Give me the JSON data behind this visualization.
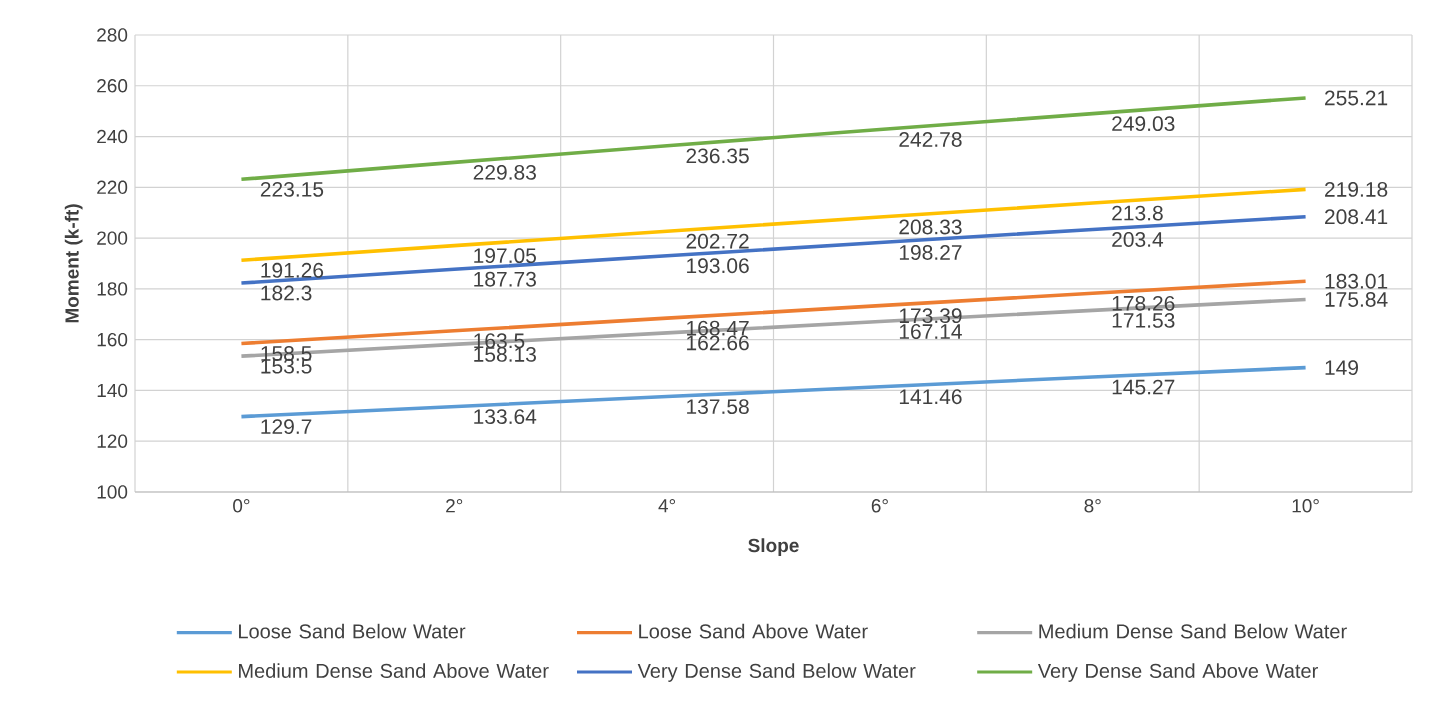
{
  "chart_data": {
    "type": "line",
    "xlabel": "Slope",
    "ylabel": "Moment (k-ft)",
    "categories": [
      "0°",
      "2°",
      "4°",
      "6°",
      "8°",
      "10°"
    ],
    "ylim": [
      100,
      280
    ],
    "yticks": [
      100,
      120,
      140,
      160,
      180,
      200,
      220,
      240,
      260,
      280
    ],
    "grid": true,
    "legend": "bottom",
    "data_labels": true,
    "marker": "none",
    "line_style": "solid",
    "series": [
      {
        "name": "Loose Sand Below Water",
        "color": "#5b9bd5",
        "values": [
          129.7,
          133.64,
          137.58,
          141.46,
          145.27,
          149
        ]
      },
      {
        "name": "Loose Sand Above Water",
        "color": "#ed7d31",
        "values": [
          158.5,
          163.5,
          168.47,
          173.39,
          178.26,
          183.01
        ]
      },
      {
        "name": "Medium Dense Sand Below Water",
        "color": "#a5a5a5",
        "values": [
          153.5,
          158.13,
          162.66,
          167.14,
          171.53,
          175.84
        ]
      },
      {
        "name": "Medium Dense Sand Above Water",
        "color": "#ffc000",
        "values": [
          191.26,
          197.05,
          202.72,
          208.33,
          213.8,
          219.18
        ]
      },
      {
        "name": "Very Dense Sand Below Water",
        "color": "#4472c4",
        "values": [
          182.3,
          187.73,
          193.06,
          198.27,
          203.4,
          208.41
        ]
      },
      {
        "name": "Very Dense Sand Above Water",
        "color": "#70ad47",
        "values": [
          223.15,
          229.83,
          236.35,
          242.78,
          249.03,
          255.21
        ]
      }
    ]
  }
}
